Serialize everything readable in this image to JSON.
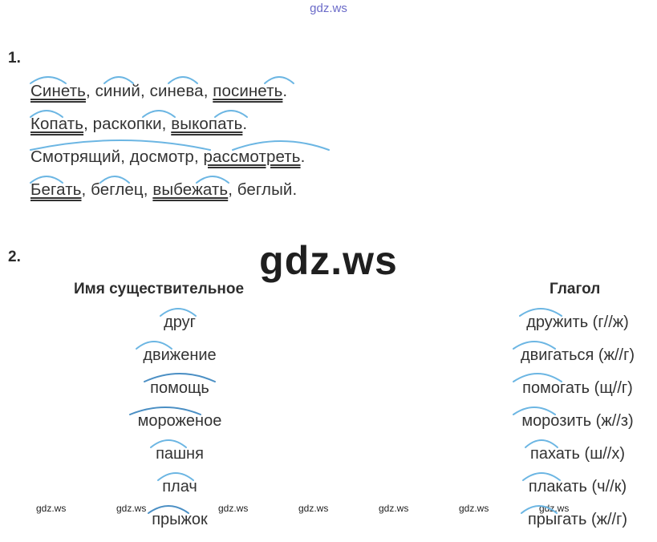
{
  "watermark_top": "gdz.ws",
  "section1": {
    "number": "1.",
    "lines": [
      [
        {
          "t": "Синеть",
          "u": "d"
        },
        {
          "t": ", "
        },
        {
          "t": "синий"
        },
        {
          "t": ", "
        },
        {
          "t": "синева"
        },
        {
          "t": ", "
        },
        {
          "t": "посинеть",
          "u": "d"
        },
        {
          "t": "."
        }
      ],
      [
        {
          "t": "Копать",
          "u": "d"
        },
        {
          "t": ", "
        },
        {
          "t": "раскопки"
        },
        {
          "t": ", "
        },
        {
          "t": "выкопать",
          "u": "d"
        },
        {
          "t": "."
        }
      ],
      [
        {
          "t": "Смотрящий"
        },
        {
          "t": ", "
        },
        {
          "t": "досмотр"
        },
        {
          "t": ", "
        },
        {
          "t": "рассмотреть",
          "u": "d"
        },
        {
          "t": "."
        }
      ],
      [
        {
          "t": "Бегать",
          "u": "d"
        },
        {
          "t": ", "
        },
        {
          "t": "беглец"
        },
        {
          "t": ", "
        },
        {
          "t": "выбежать",
          "u": "d"
        },
        {
          "t": ", "
        },
        {
          "t": "беглый"
        },
        {
          "t": "."
        }
      ]
    ]
  },
  "watermark_big": "gdz.ws",
  "section2": {
    "number": "2.",
    "noun_header": "Имя существительное",
    "verb_header": "Глагол",
    "rows": [
      {
        "noun": "друг",
        "verb": "дружить (г//ж)"
      },
      {
        "noun": "движение",
        "verb": "двигаться (ж//г)"
      },
      {
        "noun": "помощь",
        "verb": "помогать (щ//г)"
      },
      {
        "noun": "мороженое",
        "verb": "морозить (ж//з)"
      },
      {
        "noun": "пашня",
        "verb": "пахать (ш//х)"
      },
      {
        "noun": "плач",
        "verb": "плакать (ч//к)"
      },
      {
        "noun": "прыжок",
        "verb": "прыгать (ж//г)"
      }
    ]
  },
  "watermarks_bottom": [
    "gdz.ws",
    "gdz.ws",
    "gdz.ws",
    "gdz.ws",
    "gdz.ws",
    "gdz.ws",
    "gdz.ws"
  ],
  "colors": {
    "arc": "#6cb6e3",
    "arc_dark": "#4b8fc4",
    "text": "#333333",
    "watermark_top": "#6a6ac8"
  }
}
